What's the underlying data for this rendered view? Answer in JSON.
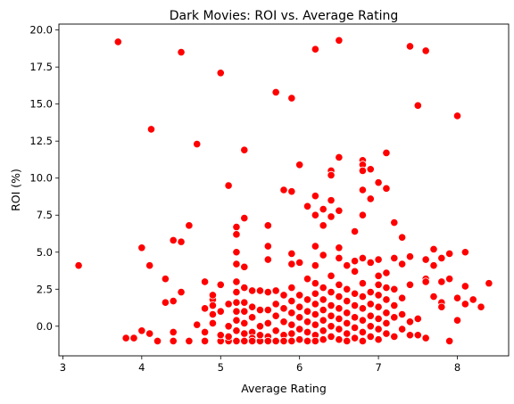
{
  "chart_data": {
    "type": "scatter",
    "title": "Dark Movies: ROI vs. Average Rating",
    "xlabel": "Average Rating",
    "ylabel": "ROI (%)",
    "xlim": [
      2.95,
      8.65
    ],
    "ylim": [
      -2.0,
      20.4
    ],
    "xticks": [
      "3",
      "4",
      "5",
      "6",
      "7",
      "8"
    ],
    "yticks": [
      "0.0",
      "2.5",
      "5.0",
      "7.5",
      "10.0",
      "12.5",
      "15.0",
      "17.5",
      "20.0"
    ],
    "grid": false,
    "legend": "none",
    "marker_color": "#ff0000",
    "marker_edge_color": "#ffffff",
    "series": [
      {
        "points": [
          [
            3.2,
            4.1
          ],
          [
            3.7,
            19.2
          ],
          [
            3.8,
            -0.8
          ],
          [
            3.9,
            -0.8
          ],
          [
            4.0,
            -0.3
          ],
          [
            4.0,
            5.3
          ],
          [
            4.1,
            -0.5
          ],
          [
            4.1,
            4.1
          ],
          [
            4.12,
            13.3
          ],
          [
            4.2,
            -1.0
          ],
          [
            4.3,
            3.2
          ],
          [
            4.3,
            1.6
          ],
          [
            4.4,
            -1.0
          ],
          [
            4.4,
            -0.4
          ],
          [
            4.4,
            1.7
          ],
          [
            4.4,
            5.8
          ],
          [
            4.5,
            5.7
          ],
          [
            4.5,
            2.3
          ],
          [
            4.5,
            18.5
          ],
          [
            4.6,
            -1.0
          ],
          [
            4.6,
            6.8
          ],
          [
            4.7,
            12.3
          ],
          [
            4.7,
            0.1
          ],
          [
            4.8,
            -1.0
          ],
          [
            4.8,
            -0.4
          ],
          [
            4.8,
            1.2
          ],
          [
            4.8,
            3.0
          ],
          [
            4.9,
            0.8
          ],
          [
            4.9,
            1.8
          ],
          [
            4.9,
            2.1
          ],
          [
            4.9,
            1.4
          ],
          [
            4.9,
            0.2
          ],
          [
            5.0,
            17.1
          ],
          [
            5.0,
            1.0
          ],
          [
            5.0,
            2.8
          ],
          [
            5.0,
            -1.0
          ],
          [
            5.0,
            -0.6
          ],
          [
            5.1,
            9.5
          ],
          [
            5.1,
            -1.0
          ],
          [
            5.1,
            -0.7
          ],
          [
            5.1,
            1.5
          ],
          [
            5.1,
            0.0
          ],
          [
            5.2,
            6.7
          ],
          [
            5.2,
            6.2
          ],
          [
            5.2,
            5.0
          ],
          [
            5.2,
            4.2
          ],
          [
            5.2,
            3.0
          ],
          [
            5.2,
            2.3
          ],
          [
            5.2,
            1.6
          ],
          [
            5.2,
            1.0
          ],
          [
            5.2,
            0.4
          ],
          [
            5.2,
            -0.3
          ],
          [
            5.2,
            -1.0
          ],
          [
            5.3,
            11.9
          ],
          [
            5.3,
            7.3
          ],
          [
            5.3,
            4.0
          ],
          [
            5.3,
            2.6
          ],
          [
            5.3,
            1.6
          ],
          [
            5.3,
            1.0
          ],
          [
            5.3,
            0.2
          ],
          [
            5.3,
            -0.5
          ],
          [
            5.3,
            -1.0
          ],
          [
            5.4,
            2.4
          ],
          [
            5.4,
            1.3
          ],
          [
            5.4,
            0.6
          ],
          [
            5.4,
            -0.4
          ],
          [
            5.4,
            -0.8
          ],
          [
            5.4,
            -1.0
          ],
          [
            5.5,
            2.4
          ],
          [
            5.5,
            1.1
          ],
          [
            5.5,
            0.0
          ],
          [
            5.5,
            -1.0
          ],
          [
            5.5,
            -0.6
          ],
          [
            5.6,
            6.8
          ],
          [
            5.6,
            5.4
          ],
          [
            5.6,
            4.5
          ],
          [
            5.6,
            2.3
          ],
          [
            5.6,
            1.1
          ],
          [
            5.6,
            0.2
          ],
          [
            5.6,
            -0.7
          ],
          [
            5.6,
            -1.0
          ],
          [
            5.7,
            15.8
          ],
          [
            5.7,
            2.4
          ],
          [
            5.7,
            1.5
          ],
          [
            5.7,
            0.7
          ],
          [
            5.7,
            -0.3
          ],
          [
            5.7,
            -1.0
          ],
          [
            5.8,
            9.2
          ],
          [
            5.8,
            2.1
          ],
          [
            5.8,
            1.2
          ],
          [
            5.8,
            0.3
          ],
          [
            5.8,
            -0.6
          ],
          [
            5.8,
            -1.0
          ],
          [
            5.9,
            15.4
          ],
          [
            5.9,
            9.1
          ],
          [
            5.9,
            4.9
          ],
          [
            5.9,
            4.2
          ],
          [
            5.9,
            2.6
          ],
          [
            5.9,
            1.7
          ],
          [
            5.9,
            0.9
          ],
          [
            5.9,
            0.1
          ],
          [
            5.9,
            -0.5
          ],
          [
            5.9,
            -1.0
          ],
          [
            6.0,
            10.9
          ],
          [
            6.0,
            4.3
          ],
          [
            6.0,
            2.1
          ],
          [
            6.0,
            1.3
          ],
          [
            6.0,
            0.6
          ],
          [
            6.0,
            -0.2
          ],
          [
            6.0,
            -0.9
          ],
          [
            6.1,
            8.1
          ],
          [
            6.1,
            3.2
          ],
          [
            6.1,
            1.8
          ],
          [
            6.1,
            1.0
          ],
          [
            6.1,
            0.3
          ],
          [
            6.1,
            -0.4
          ],
          [
            6.1,
            -1.0
          ],
          [
            6.2,
            18.7
          ],
          [
            6.2,
            8.8
          ],
          [
            6.2,
            7.5
          ],
          [
            6.2,
            5.4
          ],
          [
            6.2,
            4.1
          ],
          [
            6.2,
            2.9
          ],
          [
            6.2,
            2.2
          ],
          [
            6.2,
            1.5
          ],
          [
            6.2,
            0.8
          ],
          [
            6.2,
            0.1
          ],
          [
            6.2,
            -0.6
          ],
          [
            6.2,
            -1.0
          ],
          [
            6.3,
            7.9
          ],
          [
            6.3,
            6.8
          ],
          [
            6.3,
            4.8
          ],
          [
            6.3,
            2.6
          ],
          [
            6.3,
            1.8
          ],
          [
            6.3,
            1.1
          ],
          [
            6.3,
            0.4
          ],
          [
            6.3,
            -0.3
          ],
          [
            6.3,
            -0.9
          ],
          [
            6.4,
            8.5
          ],
          [
            6.4,
            7.4
          ],
          [
            6.4,
            3.4
          ],
          [
            6.4,
            2.3
          ],
          [
            6.4,
            1.4
          ],
          [
            6.4,
            0.7
          ],
          [
            6.4,
            0.0
          ],
          [
            6.4,
            -0.7
          ],
          [
            6.4,
            10.5
          ],
          [
            6.4,
            10.2
          ],
          [
            6.5,
            19.3
          ],
          [
            6.5,
            11.4
          ],
          [
            6.5,
            7.8
          ],
          [
            6.5,
            5.3
          ],
          [
            6.5,
            4.6
          ],
          [
            6.5,
            2.8
          ],
          [
            6.5,
            2.0
          ],
          [
            6.5,
            1.2
          ],
          [
            6.5,
            0.5
          ],
          [
            6.5,
            -0.2
          ],
          [
            6.5,
            -0.9
          ],
          [
            6.6,
            4.1
          ],
          [
            6.6,
            2.5
          ],
          [
            6.6,
            1.7
          ],
          [
            6.6,
            0.9
          ],
          [
            6.6,
            0.2
          ],
          [
            6.6,
            -0.5
          ],
          [
            6.6,
            -1.0
          ],
          [
            6.7,
            6.4
          ],
          [
            6.7,
            4.4
          ],
          [
            6.7,
            3.7
          ],
          [
            6.7,
            2.2
          ],
          [
            6.7,
            1.4
          ],
          [
            6.7,
            0.6
          ],
          [
            6.7,
            -0.1
          ],
          [
            6.7,
            -0.8
          ],
          [
            6.8,
            11.2
          ],
          [
            6.8,
            10.9
          ],
          [
            6.8,
            10.5
          ],
          [
            6.8,
            9.2
          ],
          [
            6.8,
            7.5
          ],
          [
            6.8,
            4.6
          ],
          [
            6.8,
            2.9
          ],
          [
            6.8,
            2.0
          ],
          [
            6.8,
            1.2
          ],
          [
            6.8,
            0.4
          ],
          [
            6.8,
            -0.4
          ],
          [
            6.8,
            -1.0
          ],
          [
            6.9,
            10.6
          ],
          [
            6.9,
            8.6
          ],
          [
            6.9,
            4.3
          ],
          [
            6.9,
            2.3
          ],
          [
            6.9,
            1.5
          ],
          [
            6.9,
            0.7
          ],
          [
            6.9,
            0.0
          ],
          [
            6.9,
            -0.7
          ],
          [
            7.0,
            9.7
          ],
          [
            7.0,
            4.5
          ],
          [
            7.0,
            3.4
          ],
          [
            7.0,
            2.8
          ],
          [
            7.0,
            2.1
          ],
          [
            7.0,
            1.3
          ],
          [
            7.0,
            0.5
          ],
          [
            7.0,
            -0.2
          ],
          [
            7.0,
            -0.9
          ],
          [
            7.1,
            11.7
          ],
          [
            7.1,
            9.3
          ],
          [
            7.1,
            3.6
          ],
          [
            7.1,
            2.6
          ],
          [
            7.1,
            1.8
          ],
          [
            7.1,
            0.9
          ],
          [
            7.1,
            0.2
          ],
          [
            7.1,
            -0.5
          ],
          [
            7.2,
            7.0
          ],
          [
            7.2,
            4.6
          ],
          [
            7.2,
            2.5
          ],
          [
            7.2,
            1.4
          ],
          [
            7.2,
            0.6
          ],
          [
            7.2,
            -0.7
          ],
          [
            7.3,
            6.0
          ],
          [
            7.3,
            4.2
          ],
          [
            7.3,
            1.9
          ],
          [
            7.3,
            0.8
          ],
          [
            7.3,
            -0.2
          ],
          [
            7.4,
            18.9
          ],
          [
            7.4,
            4.7
          ],
          [
            7.4,
            2.8
          ],
          [
            7.4,
            0.3
          ],
          [
            7.4,
            -0.6
          ],
          [
            7.5,
            14.9
          ],
          [
            7.5,
            0.5
          ],
          [
            7.5,
            -0.6
          ],
          [
            7.6,
            18.6
          ],
          [
            7.6,
            4.5
          ],
          [
            7.6,
            3.2
          ],
          [
            7.6,
            3.0
          ],
          [
            7.6,
            -0.8
          ],
          [
            7.7,
            5.2
          ],
          [
            7.7,
            4.1
          ],
          [
            7.7,
            2.0
          ],
          [
            7.8,
            4.6
          ],
          [
            7.8,
            3.0
          ],
          [
            7.8,
            1.6
          ],
          [
            7.8,
            1.3
          ],
          [
            7.9,
            4.9
          ],
          [
            7.9,
            3.2
          ],
          [
            7.9,
            -1.0
          ],
          [
            8.0,
            14.2
          ],
          [
            8.0,
            0.4
          ],
          [
            8.0,
            1.9
          ],
          [
            8.1,
            5.0
          ],
          [
            8.1,
            2.7
          ],
          [
            8.1,
            1.5
          ],
          [
            8.2,
            1.8
          ],
          [
            8.3,
            1.3
          ],
          [
            8.4,
            2.9
          ]
        ]
      }
    ]
  }
}
